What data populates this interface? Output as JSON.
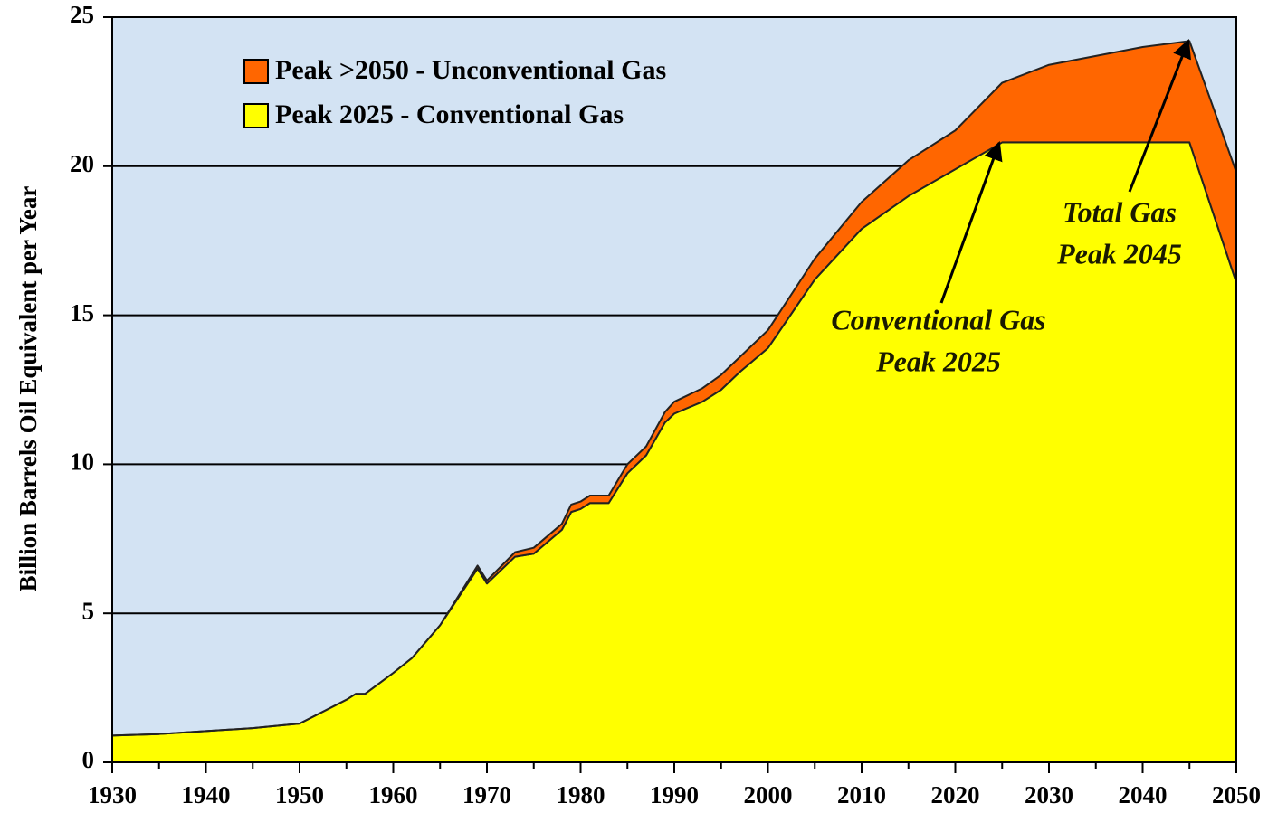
{
  "chart_data": {
    "type": "stacked_area",
    "y_label": "Billion Barrels Oil Equivalent per Year",
    "x": [
      1930,
      1935,
      1940,
      1945,
      1950,
      1955,
      1956,
      1957,
      1960,
      1962,
      1965,
      1969,
      1970,
      1973,
      1975,
      1978,
      1979,
      1980,
      1981,
      1983,
      1985,
      1987,
      1989,
      1990,
      1993,
      1995,
      1997,
      2000,
      2005,
      2010,
      2015,
      2020,
      2025,
      2030,
      2035,
      2040,
      2045,
      2050
    ],
    "series": [
      {
        "name": "Peak 2025 - Conventional Gas",
        "color": "#ffff00",
        "values": [
          0.9,
          0.95,
          1.05,
          1.15,
          1.3,
          2.1,
          2.3,
          2.3,
          3.0,
          3.5,
          4.6,
          6.5,
          6.0,
          6.9,
          7.0,
          7.8,
          8.4,
          8.5,
          8.7,
          8.7,
          9.7,
          10.3,
          11.4,
          11.7,
          12.1,
          12.5,
          13.1,
          13.9,
          16.2,
          17.9,
          19.0,
          19.9,
          20.8,
          20.8,
          20.8,
          20.8,
          20.8,
          16.1
        ]
      },
      {
        "name": "Peak >2050 - Unconventional Gas",
        "color": "#ff6600",
        "values": [
          0,
          0,
          0,
          0,
          0,
          0,
          0,
          0,
          0,
          0,
          0,
          0.1,
          0.1,
          0.15,
          0.2,
          0.2,
          0.25,
          0.25,
          0.25,
          0.25,
          0.3,
          0.3,
          0.35,
          0.4,
          0.45,
          0.5,
          0.5,
          0.6,
          0.7,
          0.9,
          1.2,
          1.3,
          2.0,
          2.6,
          2.9,
          3.2,
          3.4,
          3.7
        ]
      }
    ],
    "annotations": [
      {
        "text": [
          "Conventional Gas",
          "Peak 2025"
        ]
      },
      {
        "text": [
          "Total Gas",
          "Peak 2045"
        ]
      }
    ],
    "xlim": [
      1930,
      2050
    ],
    "xticks": [
      1930,
      1940,
      1950,
      1960,
      1970,
      1980,
      1990,
      2000,
      2010,
      2020,
      2030,
      2040,
      2050
    ],
    "ylim": [
      0,
      25
    ],
    "yticks": [
      0,
      5,
      10,
      15,
      20,
      25
    ],
    "grid": true
  }
}
